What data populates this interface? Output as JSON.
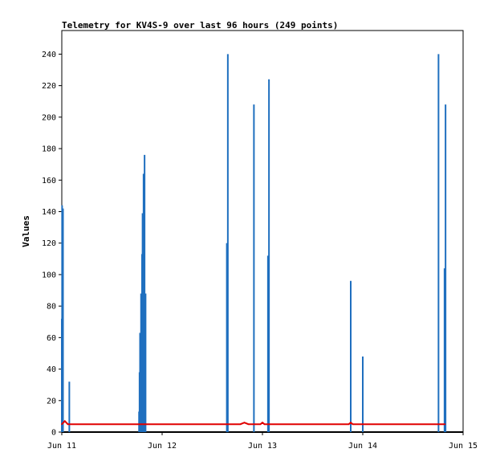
{
  "chart_data": {
    "type": "line",
    "title": "Telemetry for KV4S-9 over last 96 hours (249 points)",
    "xlabel": "",
    "ylabel": "Values",
    "x_domain": [
      "Jun 11",
      "Jun 15"
    ],
    "ylim": [
      0,
      255
    ],
    "grid": false,
    "legend": "none",
    "x_ticks": [
      {
        "label": "Jun 11",
        "day": 0
      },
      {
        "label": "Jun 12",
        "day": 1
      },
      {
        "label": "Jun 13",
        "day": 2
      },
      {
        "label": "Jun 14",
        "day": 3
      },
      {
        "label": "Jun 15",
        "day": 4
      }
    ],
    "y_ticks": [
      0,
      20,
      40,
      60,
      80,
      100,
      120,
      140,
      160,
      180,
      200,
      220,
      240
    ],
    "series": [
      {
        "color": "#1f6fbf",
        "points": [
          {
            "day": 0.0,
            "value": 72
          },
          {
            "day": 0.003,
            "value": 144
          },
          {
            "day": 0.012,
            "value": 142
          },
          {
            "day": 0.075,
            "value": 32
          },
          {
            "day": 0.77,
            "value": 13
          },
          {
            "day": 0.775,
            "value": 38
          },
          {
            "day": 0.78,
            "value": 63
          },
          {
            "day": 0.79,
            "value": 88
          },
          {
            "day": 0.8,
            "value": 113
          },
          {
            "day": 0.805,
            "value": 139
          },
          {
            "day": 0.815,
            "value": 164
          },
          {
            "day": 0.825,
            "value": 176
          },
          {
            "day": 0.835,
            "value": 88
          },
          {
            "day": 1.645,
            "value": 120
          },
          {
            "day": 1.655,
            "value": 240
          },
          {
            "day": 1.915,
            "value": 208
          },
          {
            "day": 2.055,
            "value": 112
          },
          {
            "day": 2.065,
            "value": 224
          },
          {
            "day": 2.88,
            "value": 96
          },
          {
            "day": 3.0,
            "value": 48
          },
          {
            "day": 3.755,
            "value": 240
          },
          {
            "day": 3.815,
            "value": 104
          },
          {
            "day": 3.825,
            "value": 208
          }
        ]
      },
      {
        "color": "#e00000",
        "points": [
          {
            "day": 0.0,
            "value": 5
          },
          {
            "day": 0.03,
            "value": 7
          },
          {
            "day": 0.06,
            "value": 5
          },
          {
            "day": 1.78,
            "value": 5
          },
          {
            "day": 1.82,
            "value": 6
          },
          {
            "day": 1.86,
            "value": 5
          },
          {
            "day": 1.98,
            "value": 5
          },
          {
            "day": 2.0,
            "value": 6
          },
          {
            "day": 2.02,
            "value": 5
          },
          {
            "day": 2.86,
            "value": 5
          },
          {
            "day": 2.88,
            "value": 6
          },
          {
            "day": 2.9,
            "value": 5
          },
          {
            "day": 3.82,
            "value": 5
          }
        ]
      }
    ]
  }
}
